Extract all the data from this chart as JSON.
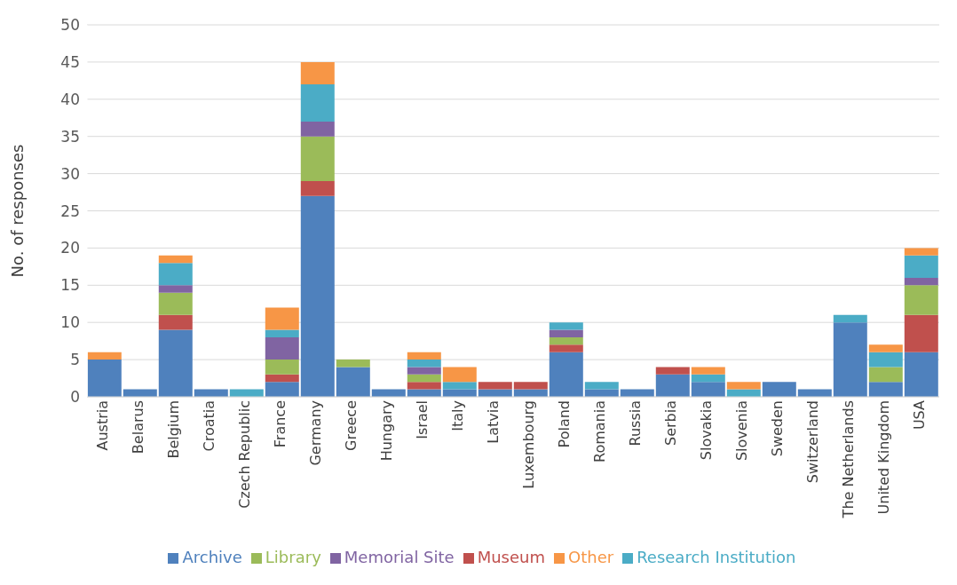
{
  "chart_data": {
    "type": "bar",
    "stacked": true,
    "ylabel": "No. of responses",
    "categories": [
      "Austria",
      "Belarus",
      "Belgium",
      "Croatia",
      "Czech Republic",
      "France",
      "Germany",
      "Greece",
      "Hungary",
      "Israel",
      "Italy",
      "Latvia",
      "Luxembourg",
      "Poland",
      "Romania",
      "Russia",
      "Serbia",
      "Slovakia",
      "Slovenia",
      "Sweden",
      "Switzerland",
      "The Netherlands",
      "United Kingdom",
      "USA"
    ],
    "series": [
      {
        "name": "Archive",
        "color": "#4f81bd",
        "values": [
          5,
          1,
          9,
          1,
          0,
          2,
          27,
          4,
          1,
          1,
          1,
          1,
          1,
          6,
          1,
          1,
          3,
          2,
          0,
          2,
          1,
          10,
          2,
          6
        ]
      },
      {
        "name": "Museum",
        "color": "#c0504d",
        "values": [
          0,
          0,
          2,
          0,
          0,
          1,
          2,
          0,
          0,
          1,
          0,
          1,
          1,
          1,
          0,
          0,
          1,
          0,
          0,
          0,
          0,
          0,
          0,
          5
        ]
      },
      {
        "name": "Library",
        "color": "#9bbb59",
        "values": [
          0,
          0,
          3,
          0,
          0,
          2,
          6,
          1,
          0,
          1,
          0,
          0,
          0,
          1,
          0,
          0,
          0,
          0,
          0,
          0,
          0,
          0,
          2,
          4
        ]
      },
      {
        "name": "Memorial Site",
        "color": "#8064a2",
        "values": [
          0,
          0,
          1,
          0,
          0,
          3,
          2,
          0,
          0,
          1,
          0,
          0,
          0,
          1,
          0,
          0,
          0,
          0,
          0,
          0,
          0,
          0,
          0,
          1
        ]
      },
      {
        "name": "Research Institution",
        "color": "#4bacc6",
        "values": [
          0,
          0,
          3,
          0,
          1,
          1,
          5,
          0,
          0,
          1,
          1,
          0,
          0,
          1,
          1,
          0,
          0,
          1,
          1,
          0,
          0,
          1,
          2,
          3
        ]
      },
      {
        "name": "Other",
        "color": "#f79646",
        "values": [
          1,
          0,
          1,
          0,
          0,
          3,
          3,
          0,
          0,
          1,
          2,
          0,
          0,
          0,
          0,
          0,
          0,
          1,
          1,
          0,
          0,
          0,
          1,
          1
        ]
      }
    ],
    "ylim": [
      0,
      50
    ],
    "yticks": [
      0,
      5,
      10,
      15,
      20,
      25,
      30,
      35,
      40,
      45,
      50
    ],
    "grid": "y",
    "legend": "bottom"
  }
}
